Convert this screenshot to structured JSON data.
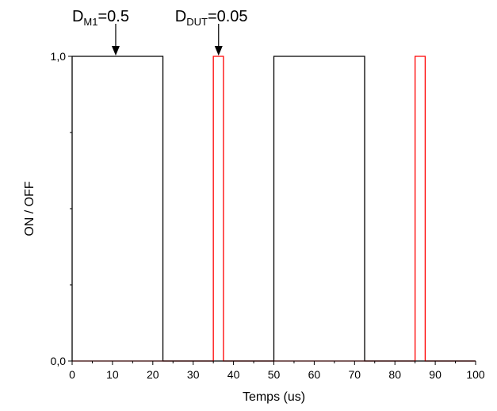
{
  "chart_data": {
    "type": "line",
    "xlabel": "Temps (us)",
    "ylabel": "ON / OFF",
    "xlim": [
      0,
      100
    ],
    "ylim": [
      0,
      1
    ],
    "x_ticks": [
      "0",
      "10",
      "20",
      "30",
      "40",
      "50",
      "60",
      "70",
      "80",
      "90",
      "100"
    ],
    "y_ticks": [
      "0,0",
      "1,0"
    ],
    "grid": false,
    "series": [
      {
        "color": "#000000",
        "points": [
          [
            0,
            0
          ],
          [
            0,
            1
          ],
          [
            22.5,
            1
          ],
          [
            22.5,
            0
          ],
          [
            50,
            0
          ],
          [
            50,
            1
          ],
          [
            72.5,
            1
          ],
          [
            72.5,
            0
          ],
          [
            100,
            0
          ]
        ]
      },
      {
        "color": "#ff0000",
        "points": [
          [
            0,
            0
          ],
          [
            35,
            0
          ],
          [
            35,
            1
          ],
          [
            37.5,
            1
          ],
          [
            37.5,
            0
          ],
          [
            85,
            0
          ],
          [
            85,
            1
          ],
          [
            87.5,
            1
          ],
          [
            87.5,
            0
          ],
          [
            100,
            0
          ]
        ]
      }
    ],
    "annotations": [
      {
        "base": "D",
        "sub": "M1",
        "rest": "=0.5",
        "x": 10.8,
        "y": 1
      },
      {
        "base": "D",
        "sub": "DUT",
        "rest": "=0.05",
        "x": 36.3,
        "y": 1
      }
    ]
  }
}
